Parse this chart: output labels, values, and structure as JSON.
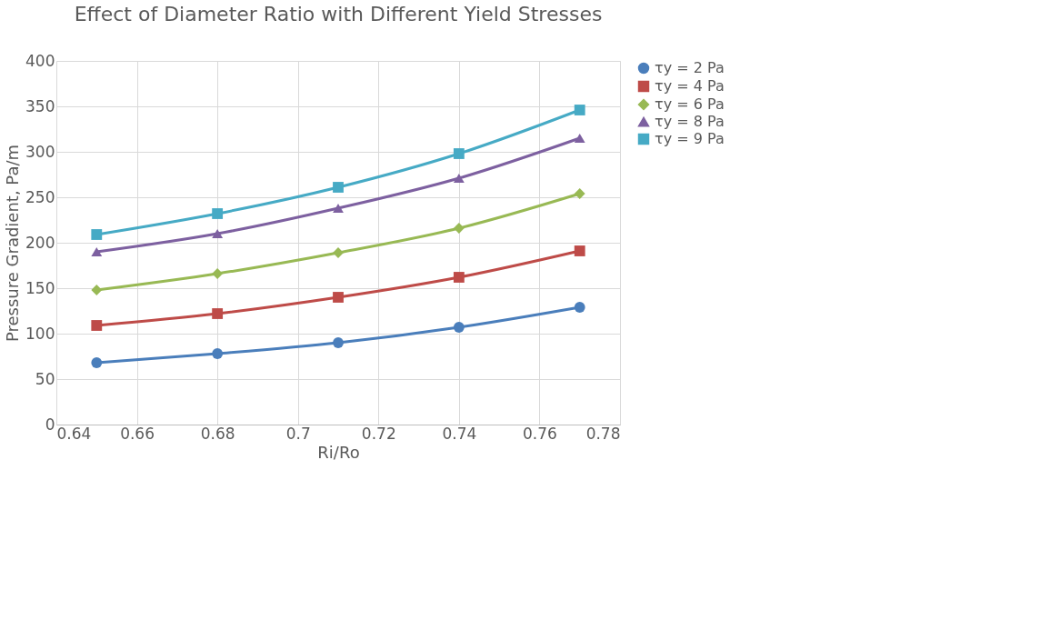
{
  "chart_data": {
    "type": "line",
    "title": "Effect of Diameter Ratio with Different Yield Stresses",
    "xlabel": "Ri/Ro",
    "ylabel": "Pressure Gradient, Pa/m",
    "x": [
      0.65,
      0.68,
      0.71,
      0.74,
      0.77
    ],
    "series": [
      {
        "name": "τy = 2 Pa",
        "color": "#4a7ebb",
        "marker": "circle",
        "values": [
          68,
          78,
          90,
          107,
          129
        ]
      },
      {
        "name": "τy = 4 Pa",
        "color": "#be4b48",
        "marker": "square",
        "values": [
          109,
          122,
          140,
          162,
          191
        ]
      },
      {
        "name": "τy = 6 Pa",
        "color": "#98b954",
        "marker": "diamond",
        "values": [
          148,
          166,
          189,
          216,
          254
        ]
      },
      {
        "name": "τy = 8 Pa",
        "color": "#7d60a0",
        "marker": "triangle",
        "values": [
          190,
          210,
          238,
          271,
          315
        ]
      },
      {
        "name": "τy = 9 Pa",
        "color": "#46aac5",
        "marker": "square",
        "values": [
          209,
          232,
          261,
          298,
          346
        ]
      }
    ],
    "xlim": [
      0.64,
      0.78
    ],
    "xticks": [
      0.64,
      0.66,
      0.68,
      0.7,
      0.72,
      0.74,
      0.76,
      0.78
    ],
    "ylim": [
      0,
      400
    ],
    "yticks": [
      0,
      50,
      100,
      150,
      200,
      250,
      300,
      350,
      400
    ],
    "grid": true,
    "legend": "right",
    "line_style": "solid"
  }
}
